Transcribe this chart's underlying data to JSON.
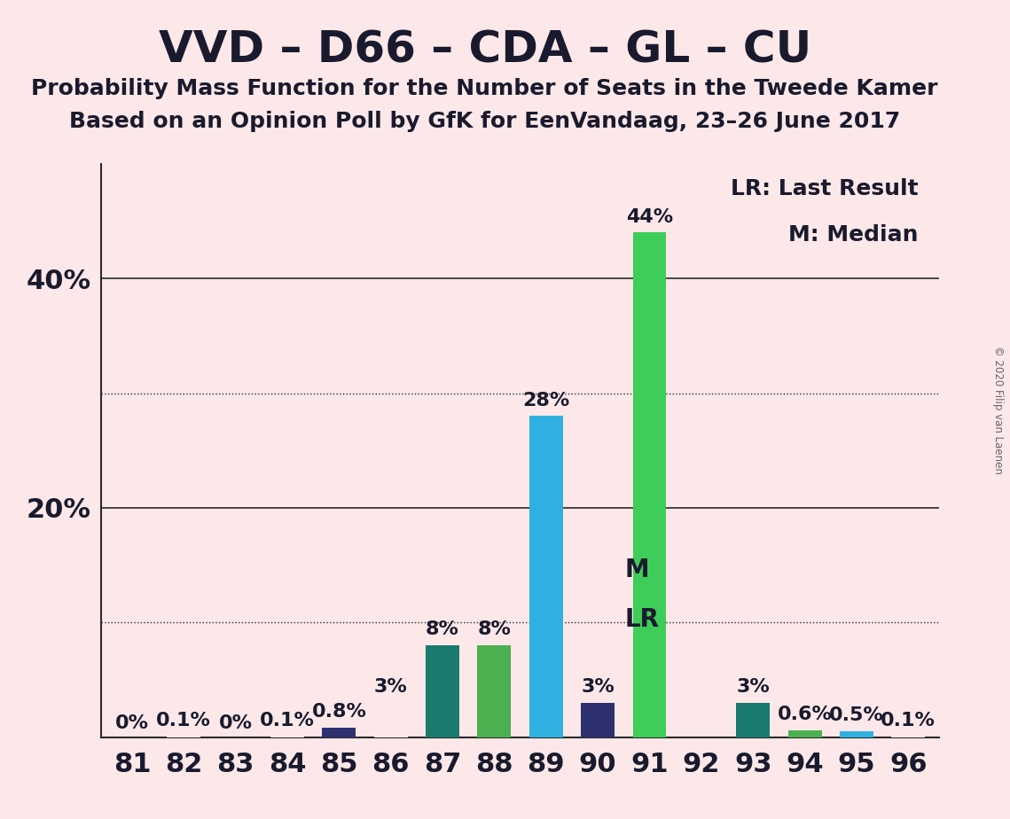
{
  "title": "VVD – D66 – CDA – GL – CU",
  "subtitle1": "Probability Mass Function for the Number of Seats in the Tweede Kamer",
  "subtitle2": "Based on an Opinion Poll by GfK for EenVandaag, 23–26 June 2017",
  "copyright": "© 2020 Filip van Laenen",
  "legend_lr": "LR: Last Result",
  "legend_m": "M: Median",
  "background_color": "#fce8e8",
  "seats": [
    81,
    82,
    83,
    84,
    85,
    86,
    87,
    88,
    89,
    90,
    91,
    92,
    93,
    94,
    95,
    96
  ],
  "values": [
    0.0,
    0.1,
    0.0,
    0.1,
    0.8,
    3.0,
    8.0,
    8.0,
    28.0,
    3.0,
    44.0,
    0.0,
    3.0,
    0.6,
    0.5,
    0.1
  ],
  "bar_colors": [
    "#fce8e8",
    "#fce8e8",
    "#fce8e8",
    "#fce8e8",
    "#2e3070",
    "#fce8e8",
    "#1a7a6e",
    "#4caf50",
    "#30b0e0",
    "#2e3070",
    "#3dcd58",
    "#fce8e8",
    "#1a7a6e",
    "#4caf50",
    "#30b0e0",
    "#fce8e8"
  ],
  "label_values": [
    "0%",
    "0.1%",
    "0%",
    "0.1%",
    "0.8%",
    "3%",
    "8%",
    "8%",
    "28%",
    "3%",
    "44%",
    "",
    "3%",
    "0.6%",
    "0.5%",
    "0.1%"
  ],
  "median_seat": 90,
  "lr_seat": 90,
  "ylim_max": 50,
  "solid_lines": [
    20,
    40
  ],
  "dotted_lines": [
    10,
    30
  ],
  "title_fontsize": 36,
  "subtitle_fontsize": 18,
  "tick_fontsize": 22,
  "bar_label_fontsize": 16,
  "annot_fontsize": 20,
  "legend_fontsize": 18
}
